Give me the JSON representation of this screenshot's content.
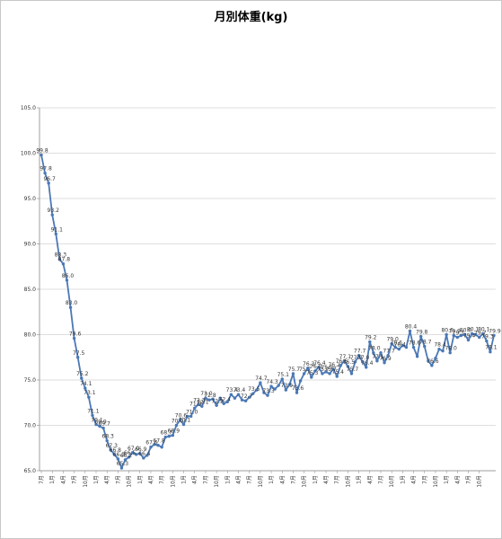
{
  "chart_data": {
    "type": "line",
    "title": "月別体重(kg)",
    "xlabel": "",
    "ylabel": "",
    "ylim": [
      65.0,
      105.0
    ],
    "yticks": [
      "65.0",
      "70.0",
      "75.0",
      "80.0",
      "85.0",
      "90.0",
      "95.0",
      "100.0",
      "105.0"
    ],
    "grid": true,
    "legend": "none",
    "line_color": "#4a78b6",
    "x_labels": [
      "7月",
      "1月",
      "4月",
      "7月",
      "10月",
      "1月",
      "4月",
      "7月",
      "10月",
      "1月",
      "4月",
      "7月",
      "10月",
      "1月",
      "4月",
      "7月",
      "10月",
      "1月",
      "4月",
      "7月",
      "10月",
      "1月",
      "4月",
      "7月",
      "10月",
      "1月",
      "4月",
      "7月",
      "10月",
      "1月",
      "4月",
      "7月",
      "10月",
      "1月",
      "4月",
      "7月",
      "10月",
      "1月",
      "4月",
      "7月",
      "10月"
    ],
    "values": [
      99.8,
      97.8,
      96.7,
      93.2,
      91.1,
      88.3,
      87.8,
      86.0,
      83.0,
      79.6,
      77.5,
      75.2,
      74.1,
      73.1,
      71.1,
      70.1,
      69.9,
      69.7,
      68.3,
      67.3,
      66.8,
      66.3,
      65.3,
      66.2,
      66.5,
      67.0,
      66.8,
      66.9,
      66.4,
      66.7,
      67.6,
      67.9,
      67.8,
      67.6,
      68.7,
      68.8,
      68.9,
      70.0,
      70.6,
      70.1,
      71.0,
      71.0,
      71.9,
      72.3,
      72.1,
      73.0,
      72.8,
      72.9,
      72.2,
      73.0,
      72.4,
      72.6,
      73.4,
      73.0,
      73.4,
      72.8,
      72.7,
      73.1,
      73.5,
      73.9,
      74.7,
      73.6,
      73.3,
      74.3,
      74.0,
      74.4,
      75.1,
      73.9,
      74.5,
      75.7,
      73.6,
      74.9,
      75.7,
      76.3,
      75.3,
      76.0,
      76.4,
      75.7,
      75.9,
      75.7,
      76.2,
      75.4,
      76.6,
      77.1,
      76.5,
      75.7,
      77.0,
      77.7,
      77.0,
      76.4,
      79.2,
      78.0,
      77.1,
      78.0,
      76.9,
      77.7,
      79.0,
      78.6,
      78.4,
      78.8,
      78.6,
      80.4,
      78.6,
      77.6,
      79.8,
      78.7,
      77.1,
      76.6,
      77.4,
      78.4,
      78.2,
      80.0,
      78.0,
      79.9,
      79.7,
      79.9,
      80.0,
      79.4,
      80.1,
      80.0,
      79.7,
      80.1,
      79.3,
      78.1,
      79.9
    ],
    "data_labels": [
      {
        "i": 0,
        "t": "99.8"
      },
      {
        "i": 1,
        "t": "97.8"
      },
      {
        "i": 2,
        "t": "96.7"
      },
      {
        "i": 3,
        "t": "93.2"
      },
      {
        "i": 4,
        "t": "91.1"
      },
      {
        "i": 5,
        "t": "88.3"
      },
      {
        "i": 6,
        "t": "87.8"
      },
      {
        "i": 7,
        "t": "86.0"
      },
      {
        "i": 8,
        "t": "83.0"
      },
      {
        "i": 9,
        "t": "79.6"
      },
      {
        "i": 10,
        "t": "77.5"
      },
      {
        "i": 11,
        "t": "75.2"
      },
      {
        "i": 12,
        "t": "74.1"
      },
      {
        "i": 13,
        "t": "73.1"
      },
      {
        "i": 14,
        "t": "71.1"
      },
      {
        "i": 15,
        "t": "70.1"
      },
      {
        "i": 16,
        "t": "69.9"
      },
      {
        "i": 17,
        "t": "69.7"
      },
      {
        "i": 18,
        "t": "68.3"
      },
      {
        "i": 19,
        "t": "67.3"
      },
      {
        "i": 20,
        "t": "66.8"
      },
      {
        "i": 21,
        "t": "66.3"
      },
      {
        "i": 22,
        "t": "65.3"
      },
      {
        "i": 23,
        "t": "66.2"
      },
      {
        "i": 24,
        "t": "66.5"
      },
      {
        "i": 25,
        "t": "67.0"
      },
      {
        "i": 27,
        "t": "66.9"
      },
      {
        "i": 28,
        "t": "66.4"
      },
      {
        "i": 30,
        "t": "67.6"
      },
      {
        "i": 32,
        "t": "67.8"
      },
      {
        "i": 34,
        "t": "68.7"
      },
      {
        "i": 36,
        "t": "68.9"
      },
      {
        "i": 37,
        "t": "70.0"
      },
      {
        "i": 38,
        "t": "70.6"
      },
      {
        "i": 39,
        "t": "70.1"
      },
      {
        "i": 41,
        "t": "71.0"
      },
      {
        "i": 42,
        "t": "71.9"
      },
      {
        "i": 43,
        "t": "72.3"
      },
      {
        "i": 44,
        "t": "72.1"
      },
      {
        "i": 45,
        "t": "73.0"
      },
      {
        "i": 46,
        "t": "72.8"
      },
      {
        "i": 48,
        "t": "72.2"
      },
      {
        "i": 50,
        "t": "72.4"
      },
      {
        "i": 52,
        "t": "73.4"
      },
      {
        "i": 54,
        "t": "73.4"
      },
      {
        "i": 56,
        "t": "72.7"
      },
      {
        "i": 58,
        "t": "73.5"
      },
      {
        "i": 60,
        "t": "74.7"
      },
      {
        "i": 62,
        "t": "73.3"
      },
      {
        "i": 63,
        "t": "74.3"
      },
      {
        "i": 66,
        "t": "75.1"
      },
      {
        "i": 67,
        "t": "73.9"
      },
      {
        "i": 69,
        "t": "75.7"
      },
      {
        "i": 70,
        "t": "73.6"
      },
      {
        "i": 72,
        "t": "75.7"
      },
      {
        "i": 73,
        "t": "76.3"
      },
      {
        "i": 74,
        "t": "75.3"
      },
      {
        "i": 75,
        "t": "76.0"
      },
      {
        "i": 76,
        "t": "76.4"
      },
      {
        "i": 77,
        "t": "75.7"
      },
      {
        "i": 78,
        "t": "75.9"
      },
      {
        "i": 79,
        "t": "75.7"
      },
      {
        "i": 80,
        "t": "76.2"
      },
      {
        "i": 81,
        "t": "75.4"
      },
      {
        "i": 82,
        "t": "76.6"
      },
      {
        "i": 83,
        "t": "77.1"
      },
      {
        "i": 84,
        "t": "76.5"
      },
      {
        "i": 85,
        "t": "75.7"
      },
      {
        "i": 86,
        "t": "77.0"
      },
      {
        "i": 87,
        "t": "77.7"
      },
      {
        "i": 88,
        "t": "77.0"
      },
      {
        "i": 89,
        "t": "76.4"
      },
      {
        "i": 90,
        "t": "79.2"
      },
      {
        "i": 91,
        "t": "78.0"
      },
      {
        "i": 92,
        "t": "77.1"
      },
      {
        "i": 94,
        "t": "76.9"
      },
      {
        "i": 95,
        "t": "77.7"
      },
      {
        "i": 96,
        "t": "79.0"
      },
      {
        "i": 97,
        "t": "78.6"
      },
      {
        "i": 98,
        "t": "78.4"
      },
      {
        "i": 101,
        "t": "80.4"
      },
      {
        "i": 102,
        "t": "78.6"
      },
      {
        "i": 104,
        "t": "79.8"
      },
      {
        "i": 105,
        "t": "78.7"
      },
      {
        "i": 107,
        "t": "76.6"
      },
      {
        "i": 109,
        "t": "78.4"
      },
      {
        "i": 111,
        "t": "80.0"
      },
      {
        "i": 112,
        "t": "78.0"
      },
      {
        "i": 113,
        "t": "79.9"
      },
      {
        "i": 114,
        "t": "79.7"
      },
      {
        "i": 116,
        "t": "80.0"
      },
      {
        "i": 117,
        "t": "79.4"
      },
      {
        "i": 118,
        "t": "80.1"
      },
      {
        "i": 120,
        "t": "79.7"
      },
      {
        "i": 121,
        "t": "80.1"
      },
      {
        "i": 122,
        "t": "79.3"
      },
      {
        "i": 123,
        "t": "78.1"
      },
      {
        "i": 124,
        "t": "79.9"
      }
    ]
  }
}
